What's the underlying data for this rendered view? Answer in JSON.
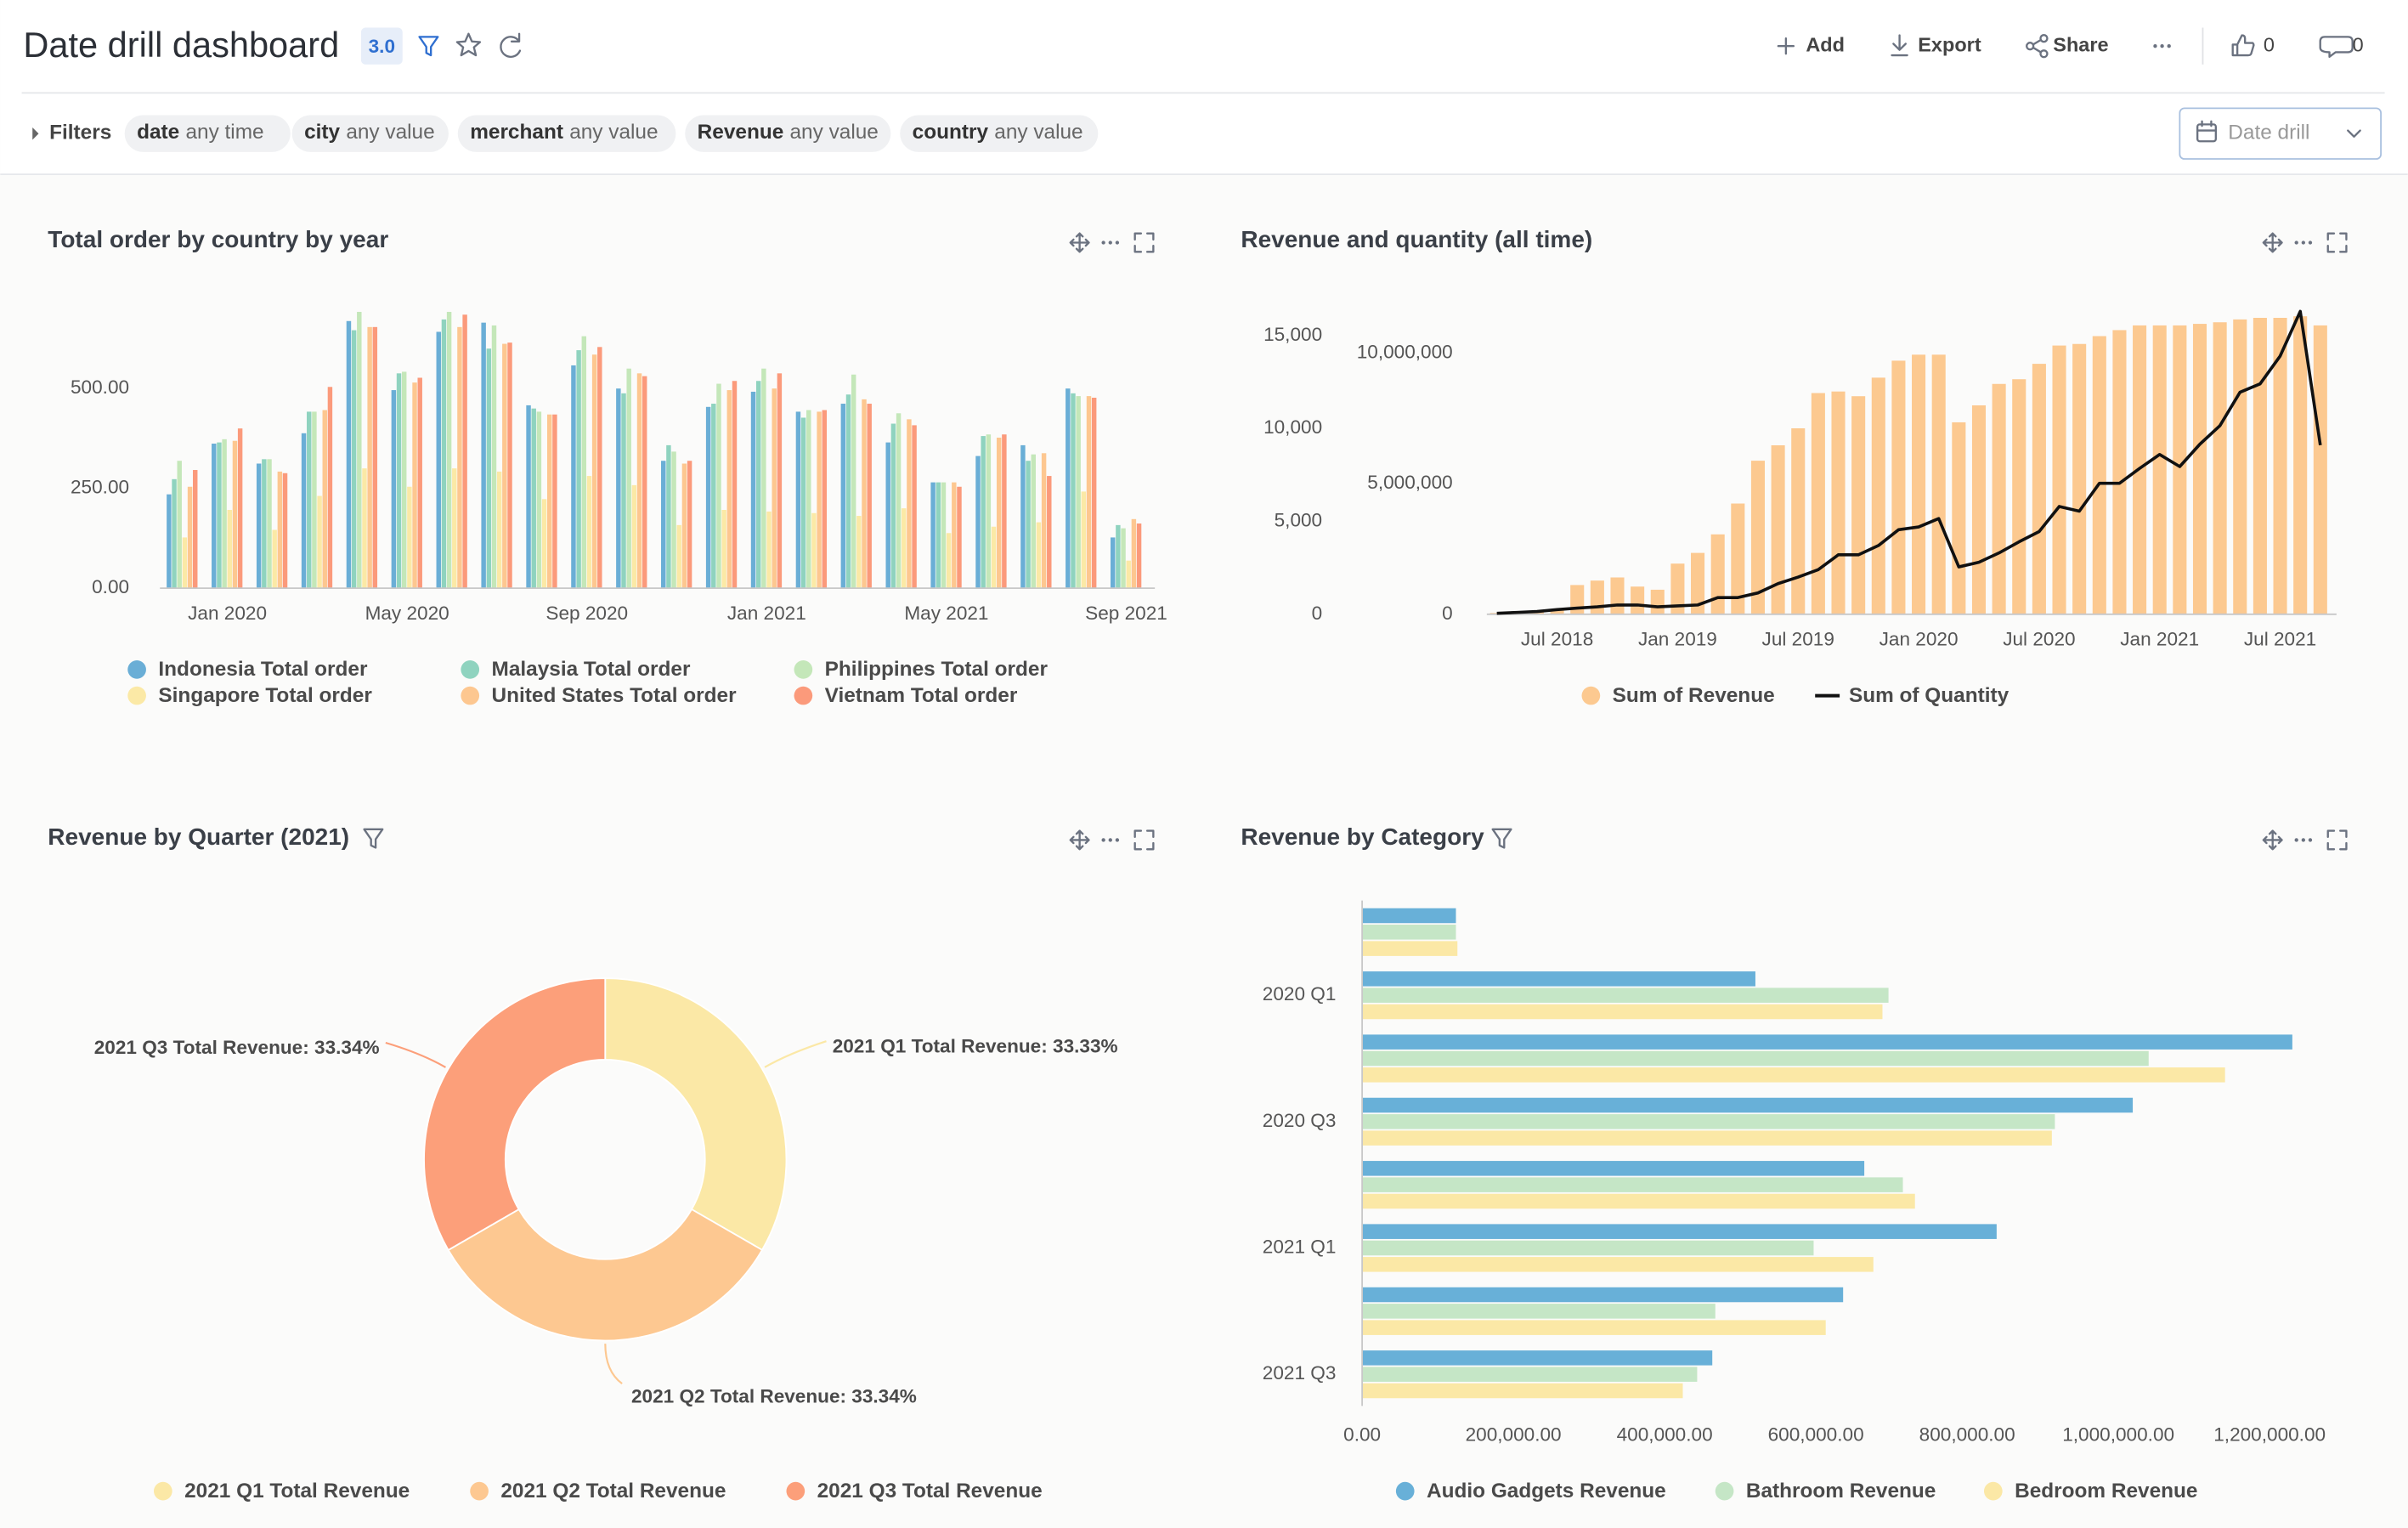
{
  "header": {
    "title": "Date drill dashboard",
    "version": "3.0",
    "actions": [
      "Add",
      "Export",
      "Share"
    ],
    "likes": 0,
    "comments": 0
  },
  "filters": {
    "label": "Filters",
    "items": [
      {
        "field": "date",
        "value": "any time"
      },
      {
        "field": "city",
        "value": "any value"
      },
      {
        "field": "merchant",
        "value": "any value"
      },
      {
        "field": "Revenue",
        "value": "any value"
      },
      {
        "field": "country",
        "value": "any value"
      }
    ],
    "date_drill": "Date drill"
  },
  "chart_data": [
    {
      "type": "bar",
      "title": "Total order by country by year",
      "categories": [
        null,
        "Jan 2020",
        null,
        null,
        null,
        "May 2020",
        null,
        null,
        null,
        "Sep 2020",
        null,
        null,
        null,
        "Jan 2021",
        null,
        null,
        null,
        "May 2021",
        null,
        null,
        null,
        "Sep 2021"
      ],
      "series": [
        {
          "name": "Indonesia Total order",
          "color": "#6aaed6",
          "values": [
            235,
            362,
            312,
            388,
            669,
            496,
            642,
            665,
            458,
            558,
            500,
            319,
            454,
            492,
            442,
            462,
            365,
            265,
            331,
            358,
            500,
            127
          ]
        },
        {
          "name": "Malaysia Total order",
          "color": "#8fd3bf",
          "values": [
            273,
            365,
            323,
            442,
            646,
            538,
            673,
            600,
            450,
            596,
            488,
            358,
            462,
            519,
            427,
            485,
            412,
            265,
            381,
            319,
            488,
            158
          ]
        },
        {
          "name": "Philippines Total order",
          "color": "#c4e7b9",
          "values": [
            319,
            373,
            323,
            442,
            692,
            542,
            692,
            658,
            442,
            631,
            550,
            342,
            512,
            550,
            446,
            535,
            438,
            265,
            385,
            335,
            481,
            150
          ]
        },
        {
          "name": "Singapore Total order",
          "color": "#fbe9a6",
          "values": [
            127,
            196,
            146,
            231,
            300,
            254,
            300,
            292,
            223,
            281,
            258,
            158,
            196,
            192,
            188,
            181,
            200,
            138,
            154,
            165,
            242,
            69
          ]
        },
        {
          "name": "United States Total order",
          "color": "#fdc790",
          "values": [
            254,
            369,
            292,
            446,
            654,
            515,
            654,
            612,
            435,
            585,
            538,
            312,
            496,
            500,
            442,
            473,
            423,
            265,
            377,
            338,
            481,
            173
          ]
        },
        {
          "name": "Vietnam Total order",
          "color": "#fb9a7b",
          "values": [
            296,
            400,
            288,
            504,
            654,
            527,
            685,
            615,
            435,
            604,
            531,
            319,
            519,
            538,
            446,
            462,
            408,
            254,
            385,
            281,
            477,
            162
          ]
        }
      ],
      "ylim": [
        0,
        700
      ],
      "yticks": [
        {
          "value": 0,
          "label": "0.00"
        },
        {
          "value": 250,
          "label": "250.00"
        },
        {
          "value": 500,
          "label": "500.00"
        }
      ],
      "grid": false
    },
    {
      "type": "combo",
      "title": "Revenue and quantity (all time)",
      "categories": [
        null,
        null,
        null,
        "Jul 2018",
        null,
        null,
        null,
        null,
        null,
        "Jan 2019",
        null,
        null,
        null,
        null,
        null,
        "Jul 2019",
        null,
        null,
        null,
        null,
        null,
        "Jan 2020",
        null,
        null,
        null,
        null,
        null,
        "Jul 2020",
        null,
        null,
        null,
        null,
        null,
        "Jan 2021",
        null,
        null,
        null,
        null,
        null,
        "Jul 2021",
        null,
        null
      ],
      "series": [
        {
          "name": "Sum of Revenue",
          "color": "#fcc990",
          "kind": "bar",
          "values": [
            50000,
            80000,
            120000,
            200000,
            1120000,
            1290000,
            1410000,
            1060000,
            940000,
            1940000,
            2350000,
            3060000,
            4240000,
            5880000,
            6470000,
            7120000,
            8470000,
            8530000,
            8350000,
            9060000,
            9710000,
            9940000,
            9940000,
            7350000,
            8000000,
            8820000,
            9000000,
            9590000,
            10290000,
            10350000,
            10650000,
            10880000,
            11060000,
            11060000,
            11060000,
            11120000,
            11180000,
            11290000,
            11350000,
            11350000,
            11410000,
            11060000
          ]
        },
        {
          "name": "Sum of Quantity",
          "color": "#111111",
          "kind": "line",
          "axis": "y2",
          "values": [
            50,
            100,
            150,
            250,
            330,
            400,
            500,
            500,
            400,
            450,
            500,
            900,
            900,
            1150,
            1650,
            2000,
            2400,
            3200,
            3200,
            3700,
            4550,
            4700,
            5150,
            2550,
            2800,
            3300,
            3900,
            4450,
            5800,
            5550,
            7050,
            7050,
            7850,
            8600,
            7950,
            9150,
            10150,
            11950,
            12400,
            13900,
            16300,
            9100
          ]
        }
      ],
      "ylim": [
        0,
        11760000
      ],
      "yticks": [
        0,
        {
          "value": 5000000,
          "label": "5,000,000"
        },
        {
          "value": 10000000,
          "label": "10,000,000"
        }
      ],
      "y2lim": [
        0,
        16530
      ],
      "y2ticks": [
        0,
        {
          "value": 5000,
          "label": "5,000"
        },
        {
          "value": 10000,
          "label": "10,000"
        },
        {
          "value": 15000,
          "label": "15,000"
        }
      ],
      "grid": false
    },
    {
      "type": "donut",
      "title": "Revenue by Quarter (2021)",
      "categories": [
        "2021 Q1 Total Revenue",
        "2021 Q2 Total Revenue",
        "2021 Q3 Total Revenue"
      ],
      "values": [
        33.33,
        33.34,
        33.34
      ],
      "value_labels": [
        "2021 Q1 Total Revenue: 33.33%",
        "2021 Q2 Total Revenue: 33.34%",
        "2021 Q3 Total Revenue: 33.34%"
      ],
      "colors": [
        "#fbe8a6",
        "#fdc891",
        "#fc9f7a"
      ]
    },
    {
      "type": "bar",
      "horizontal": true,
      "title": "Revenue by Category",
      "categories": [
        null,
        "2020 Q1",
        null,
        "2020 Q3",
        null,
        "2021 Q1",
        null,
        "2021 Q3"
      ],
      "series": [
        {
          "name": "Audio Gadgets Revenue",
          "color": "#68b0d8",
          "values": [
            124000,
            520000,
            1230000,
            1019000,
            664000,
            839000,
            636000,
            463000
          ]
        },
        {
          "name": "Bathroom Revenue",
          "color": "#c5e6c6",
          "values": [
            124000,
            696000,
            1040000,
            916000,
            715000,
            597000,
            467000,
            443000
          ]
        },
        {
          "name": "Bedroom Revenue",
          "color": "#fbe8a6",
          "values": [
            126000,
            688000,
            1141000,
            912000,
            731000,
            676000,
            613000,
            424000
          ]
        }
      ],
      "xlim": [
        0,
        1300000
      ],
      "xticks": [
        {
          "value": 0,
          "label": "0.00"
        },
        {
          "value": 200000,
          "label": "200,000.00"
        },
        {
          "value": 400000,
          "label": "400,000.00"
        },
        {
          "value": 600000,
          "label": "600,000.00"
        },
        {
          "value": 800000,
          "label": "800,000.00"
        },
        {
          "value": 1000000,
          "label": "1,000,000.00"
        },
        {
          "value": 1200000,
          "label": "1,200,000.00"
        }
      ],
      "grid": false
    }
  ]
}
